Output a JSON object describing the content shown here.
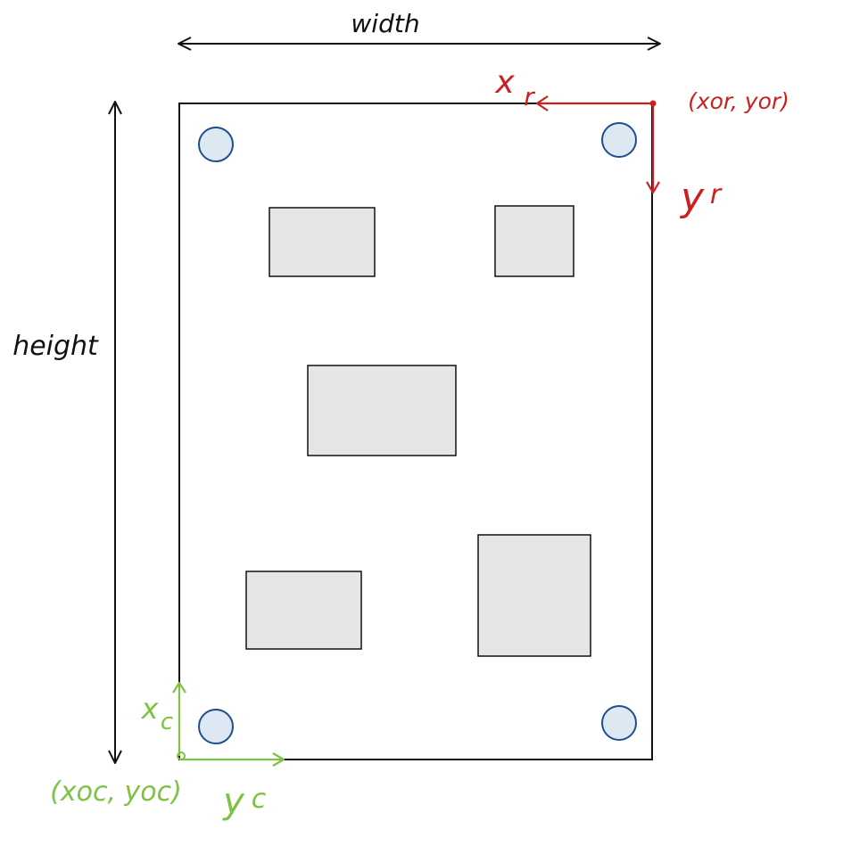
{
  "labels": {
    "width": "width",
    "height": "height",
    "robot_x_axis": "x",
    "robot_x_sub": "r",
    "robot_y_axis": "y",
    "robot_y_sub": "r",
    "robot_origin": "(xor, yor)",
    "camera_x_axis": "x",
    "camera_x_sub": "c",
    "camera_y_axis": "y",
    "camera_y_sub": "c",
    "camera_origin": "(xoc, yoc)"
  },
  "colors": {
    "outline": "#111111",
    "robot_frame": "#cc1f1f",
    "camera_frame": "#7dc242",
    "component_fill": "#e6e6e6",
    "marker_fill": "#dde8f3",
    "marker_stroke": "#1f4e8c"
  },
  "icons": {
    "corner_marker": "circle-fiducial-icon",
    "component": "rectangle-component-icon"
  }
}
